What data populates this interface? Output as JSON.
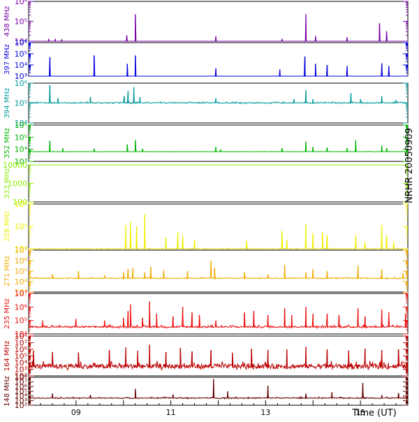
{
  "chart_data": {
    "type": "line",
    "side_label": "NRHR 20050909",
    "x_axis": {
      "label": "Time (UT)",
      "range_hours": [
        8.0,
        16.0
      ],
      "ticks": [
        {
          "hour": 9,
          "label": "09"
        },
        {
          "hour": 11,
          "label": "11"
        },
        {
          "hour": 13,
          "label": "13"
        },
        {
          "hour": 15,
          "label": "15"
        }
      ]
    },
    "panels": [
      {
        "name": "438 MHz",
        "color": "#7a00a8",
        "yrange_log": [
          4,
          6
        ],
        "ytick_labels": [
          {
            "exp": 4,
            "text": "10⁴"
          },
          {
            "exp": 5,
            "text": "10⁵"
          },
          {
            "exp": 6,
            "text": "10⁶"
          }
        ],
        "baseline_log": 4.0,
        "noise": 0.0,
        "spikes": [
          [
            8.42,
            4.12
          ],
          [
            8.56,
            4.1
          ],
          [
            8.7,
            4.08
          ],
          [
            10.07,
            4.3
          ],
          [
            10.25,
            5.35
          ],
          [
            11.95,
            4.25
          ],
          [
            13.35,
            4.1
          ],
          [
            13.85,
            5.35
          ],
          [
            14.05,
            4.25
          ],
          [
            14.72,
            4.2
          ],
          [
            15.4,
            4.9
          ],
          [
            15.55,
            4.5
          ]
        ]
      },
      {
        "name": "397 MHz",
        "color": "#0000e0",
        "yrange_log": [
          3,
          6
        ],
        "ytick_labels": [
          {
            "exp": 3,
            "text": "10³"
          },
          {
            "exp": 4,
            "text": "10⁴"
          },
          {
            "exp": 5,
            "text": "10⁵"
          },
          {
            "exp": 6,
            "text": "10⁶"
          }
        ],
        "baseline_log": 3.0,
        "noise": 0.0,
        "spikes": [
          [
            8.45,
            4.7
          ],
          [
            9.38,
            4.85
          ],
          [
            10.08,
            4.1
          ],
          [
            10.25,
            4.85
          ],
          [
            11.95,
            3.7
          ],
          [
            13.3,
            3.6
          ],
          [
            13.83,
            4.75
          ],
          [
            14.05,
            4.1
          ],
          [
            14.3,
            4.0
          ],
          [
            14.72,
            3.9
          ],
          [
            15.45,
            4.15
          ],
          [
            15.6,
            3.9
          ]
        ]
      },
      {
        "name": "394 MHz",
        "color": "#009a9a",
        "yrange_log": [
          4,
          6
        ],
        "ytick_labels": [
          {
            "exp": 4,
            "text": "10⁴"
          },
          {
            "exp": 5,
            "text": "10⁵"
          },
          {
            "exp": 6,
            "text": "10⁶"
          }
        ],
        "baseline_log": 5.0,
        "noise": 0.05,
        "spikes": [
          [
            8.45,
            5.9
          ],
          [
            8.62,
            5.25
          ],
          [
            9.3,
            5.3
          ],
          [
            10.02,
            5.35
          ],
          [
            10.1,
            5.6
          ],
          [
            10.22,
            5.8
          ],
          [
            10.35,
            5.3
          ],
          [
            11.95,
            5.25
          ],
          [
            13.6,
            5.2
          ],
          [
            13.85,
            5.65
          ],
          [
            14.0,
            5.2
          ],
          [
            14.8,
            5.5
          ],
          [
            15.0,
            5.2
          ],
          [
            15.45,
            5.35
          ],
          [
            15.75,
            5.15
          ]
        ]
      },
      {
        "name": "352 MHz",
        "color": "#00b400",
        "yrange_log": [
          3,
          6
        ],
        "ytick_labels": [
          {
            "exp": 3,
            "text": "10³"
          },
          {
            "exp": 4,
            "text": "10⁴"
          },
          {
            "exp": 5,
            "text": "10⁵"
          },
          {
            "exp": 6,
            "text": "10⁶"
          }
        ],
        "baseline_log": 3.8,
        "noise": 0.02,
        "spikes": [
          [
            8.45,
            4.7
          ],
          [
            8.72,
            4.1
          ],
          [
            9.38,
            4.05
          ],
          [
            10.08,
            4.4
          ],
          [
            10.25,
            4.75
          ],
          [
            10.4,
            4.05
          ],
          [
            11.95,
            4.2
          ],
          [
            12.05,
            4.0
          ],
          [
            13.35,
            4.1
          ],
          [
            13.85,
            4.65
          ],
          [
            14.0,
            4.2
          ],
          [
            14.3,
            4.15
          ],
          [
            14.72,
            4.1
          ],
          [
            14.9,
            4.75
          ],
          [
            15.45,
            4.3
          ],
          [
            15.55,
            4.1
          ]
        ]
      },
      {
        "name": "333 MHz",
        "color": "#88ee00",
        "yrange_log": [
          2,
          4
        ],
        "ytick_labels": [
          {
            "exp": 2,
            "text": "100"
          },
          {
            "exp": 3,
            "text": "1000"
          },
          {
            "exp": 4,
            "text": "10000"
          }
        ],
        "baseline_log": 4.0,
        "noise": 0.0,
        "spikes": []
      },
      {
        "name": "328 MHz",
        "color": "#f0f000",
        "yrange_log": [
          4,
          6
        ],
        "ytick_labels": [
          {
            "exp": 4,
            "text": "10⁴"
          },
          {
            "exp": 5,
            "text": "10⁵"
          },
          {
            "exp": 6,
            "text": "10⁶"
          }
        ],
        "baseline_log": 4.0,
        "noise": 0.01,
        "spikes": [
          [
            10.05,
            5.05
          ],
          [
            10.15,
            5.2
          ],
          [
            10.28,
            5.0
          ],
          [
            10.45,
            5.55
          ],
          [
            10.9,
            4.5
          ],
          [
            11.15,
            4.75
          ],
          [
            11.25,
            4.6
          ],
          [
            11.5,
            4.4
          ],
          [
            12.6,
            4.35
          ],
          [
            13.35,
            4.8
          ],
          [
            13.45,
            4.4
          ],
          [
            13.85,
            5.1
          ],
          [
            14.0,
            4.7
          ],
          [
            14.2,
            4.75
          ],
          [
            14.3,
            4.6
          ],
          [
            14.9,
            4.6
          ],
          [
            15.1,
            4.3
          ],
          [
            15.45,
            5.05
          ],
          [
            15.55,
            4.6
          ],
          [
            15.7,
            4.3
          ]
        ]
      },
      {
        "name": "271 MHz",
        "color": "#f0aa00",
        "yrange_log": [
          3,
          7
        ],
        "ytick_labels": [
          {
            "exp": 3,
            "text": "10³"
          },
          {
            "exp": 4,
            "text": "10⁴"
          },
          {
            "exp": 5,
            "text": "10⁵"
          },
          {
            "exp": 6,
            "text": "10⁶"
          },
          {
            "exp": 7,
            "text": "10⁷"
          }
        ],
        "baseline_log": 4.3,
        "noise": 0.08,
        "spikes": [
          [
            8.5,
            4.7
          ],
          [
            9.05,
            5.0
          ],
          [
            9.6,
            4.6
          ],
          [
            10.0,
            4.9
          ],
          [
            10.1,
            5.2
          ],
          [
            10.2,
            5.3
          ],
          [
            10.45,
            4.9
          ],
          [
            10.58,
            5.4
          ],
          [
            10.85,
            5.1
          ],
          [
            11.35,
            5.0
          ],
          [
            11.85,
            6.0
          ],
          [
            11.92,
            5.3
          ],
          [
            12.55,
            4.9
          ],
          [
            13.05,
            4.7
          ],
          [
            13.4,
            5.6
          ],
          [
            13.85,
            4.9
          ],
          [
            14.0,
            5.2
          ],
          [
            14.3,
            5.0
          ],
          [
            14.95,
            5.5
          ],
          [
            15.45,
            5.2
          ],
          [
            15.9,
            4.8
          ]
        ]
      },
      {
        "name": "235 MHz",
        "color": "#ee1111",
        "yrange_log": [
          4,
          7
        ],
        "ytick_labels": [
          {
            "exp": 4,
            "text": "10⁴"
          },
          {
            "exp": 5,
            "text": "10⁵"
          },
          {
            "exp": 6,
            "text": "10⁶"
          },
          {
            "exp": 7,
            "text": "10⁷"
          }
        ],
        "baseline_log": 4.5,
        "noise": 0.12,
        "spikes": [
          [
            8.3,
            5.0
          ],
          [
            9.0,
            5.1
          ],
          [
            9.6,
            5.0
          ],
          [
            10.0,
            5.2
          ],
          [
            10.1,
            5.7
          ],
          [
            10.15,
            6.2
          ],
          [
            10.4,
            5.2
          ],
          [
            10.55,
            6.4
          ],
          [
            10.7,
            5.5
          ],
          [
            11.05,
            5.3
          ],
          [
            11.25,
            6.0
          ],
          [
            11.45,
            5.6
          ],
          [
            11.6,
            5.4
          ],
          [
            11.95,
            5.0
          ],
          [
            12.55,
            5.6
          ],
          [
            12.75,
            5.7
          ],
          [
            13.05,
            5.4
          ],
          [
            13.4,
            5.9
          ],
          [
            13.55,
            5.4
          ],
          [
            13.85,
            6.0
          ],
          [
            14.0,
            5.5
          ],
          [
            14.3,
            5.5
          ],
          [
            14.55,
            5.4
          ],
          [
            14.95,
            5.9
          ],
          [
            15.1,
            5.3
          ],
          [
            15.45,
            5.8
          ],
          [
            15.6,
            5.6
          ],
          [
            15.95,
            5.5
          ]
        ]
      },
      {
        "name": "164 MHz",
        "color": "#bb0000",
        "yrange_log": [
          2,
          8
        ],
        "ytick_labels": [
          {
            "exp": 2,
            "text": "10²"
          },
          {
            "exp": 3,
            "text": "10³"
          },
          {
            "exp": 4,
            "text": "10⁴"
          },
          {
            "exp": 5,
            "text": "10⁵"
          },
          {
            "exp": 6,
            "text": "10⁶"
          },
          {
            "exp": 7,
            "text": "10⁷"
          },
          {
            "exp": 8,
            "text": "10⁸"
          }
        ],
        "baseline_log": 3.3,
        "noise": 0.7,
        "spikes": [
          [
            8.1,
            5.8
          ],
          [
            8.5,
            5.6
          ],
          [
            9.05,
            5.5
          ],
          [
            9.7,
            5.9
          ],
          [
            10.05,
            6.3
          ],
          [
            10.3,
            5.8
          ],
          [
            10.55,
            6.7
          ],
          [
            10.9,
            5.6
          ],
          [
            11.2,
            6.2
          ],
          [
            11.45,
            5.7
          ],
          [
            11.85,
            5.9
          ],
          [
            12.3,
            5.5
          ],
          [
            12.7,
            6.1
          ],
          [
            13.05,
            5.9
          ],
          [
            13.45,
            6.0
          ],
          [
            13.85,
            6.4
          ],
          [
            14.3,
            6.0
          ],
          [
            14.75,
            5.8
          ],
          [
            15.1,
            6.1
          ],
          [
            15.45,
            5.9
          ],
          [
            15.8,
            6.0
          ]
        ]
      },
      {
        "name": "148 MHz",
        "color": "#660000",
        "yrange_log": [
          2,
          8
        ],
        "ytick_labels": [
          {
            "exp": 2,
            "text": "10²"
          },
          {
            "exp": 3,
            "text": "10³"
          },
          {
            "exp": 4,
            "text": "10⁴"
          },
          {
            "exp": 5,
            "text": "10⁵"
          },
          {
            "exp": 6,
            "text": "10⁶"
          },
          {
            "exp": 7,
            "text": "10⁷"
          },
          {
            "exp": 8,
            "text": "10⁸"
          }
        ],
        "baseline_log": 3.5,
        "noise": 0.2,
        "spikes": [
          [
            8.5,
            4.5
          ],
          [
            9.3,
            4.2
          ],
          [
            10.25,
            5.5
          ],
          [
            11.05,
            4.3
          ],
          [
            11.9,
            7.6
          ],
          [
            12.2,
            5.0
          ],
          [
            13.05,
            6.2
          ],
          [
            13.85,
            4.5
          ],
          [
            14.4,
            4.8
          ],
          [
            15.05,
            6.8
          ],
          [
            15.45,
            4.2
          ],
          [
            15.8,
            4.6
          ]
        ]
      }
    ]
  }
}
